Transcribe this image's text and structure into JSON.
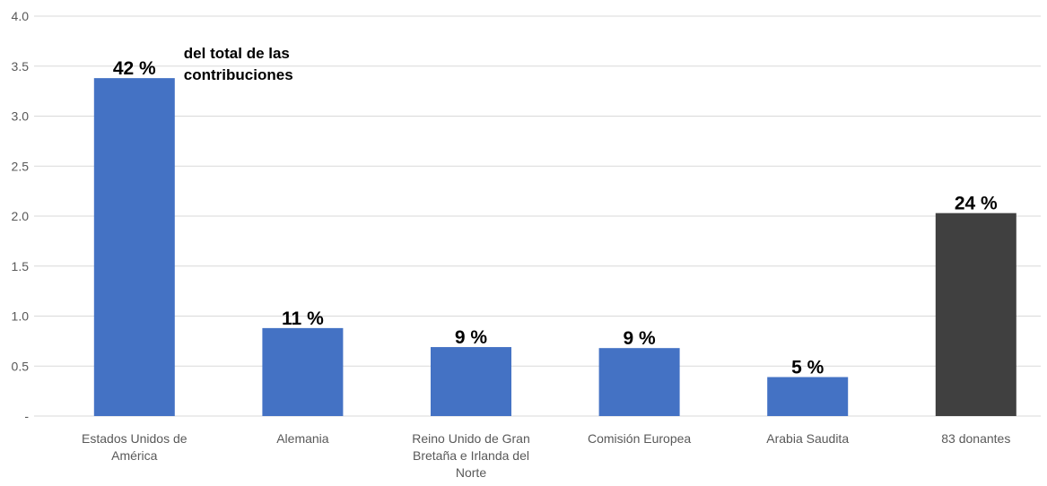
{
  "chart_data": {
    "type": "bar",
    "categories": [
      "Estados Unidos de América",
      "Alemania",
      "Reino Unido de Gran Bretaña e Irlanda del Norte",
      "Comisión Europea",
      "Arabia Saudita",
      "83 donantes"
    ],
    "values": [
      3.38,
      0.88,
      0.69,
      0.68,
      0.39,
      2.03
    ],
    "share_labels": [
      "42 %",
      "11 %",
      "9 %",
      "9 %",
      "5 %",
      "24 %"
    ],
    "colors": [
      "#4472c4",
      "#4472c4",
      "#4472c4",
      "#4472c4",
      "#4472c4",
      "#404040"
    ],
    "annotation": [
      "del total de las",
      "contribuciones"
    ],
    "ylim": [
      0,
      4
    ],
    "yticks": [
      {
        "value": 0,
        "label": "-"
      },
      0.5,
      {
        "value": 1,
        "label": "1.0"
      },
      1.5,
      {
        "value": 2,
        "label": "2.0"
      },
      2.5,
      {
        "value": 3,
        "label": "3.0"
      },
      3.5,
      {
        "value": 4,
        "label": "4.0"
      }
    ],
    "grid": true
  }
}
